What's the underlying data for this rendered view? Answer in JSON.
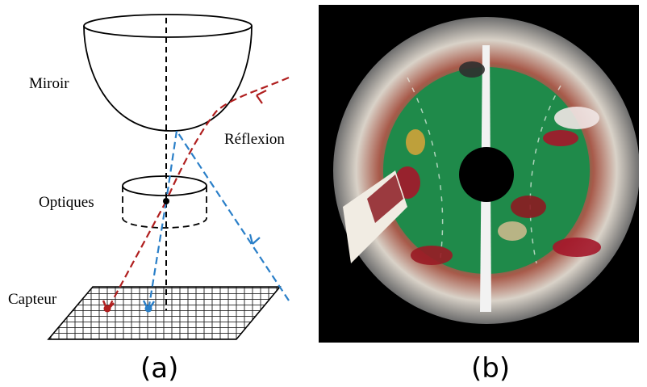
{
  "panel_a": {
    "labels": {
      "mirror": "Miroir",
      "reflection": "Réflexion",
      "optics": "Optiques",
      "sensor": "Capteur"
    },
    "caption": "(a)",
    "colors": {
      "ray_red": "#b01f1f",
      "ray_blue": "#2a7fc8",
      "line": "#000000"
    }
  },
  "panel_b": {
    "caption": "(b)",
    "colors": {
      "background": "#000000",
      "field": "#1f8a4a",
      "center": "#000000"
    }
  }
}
